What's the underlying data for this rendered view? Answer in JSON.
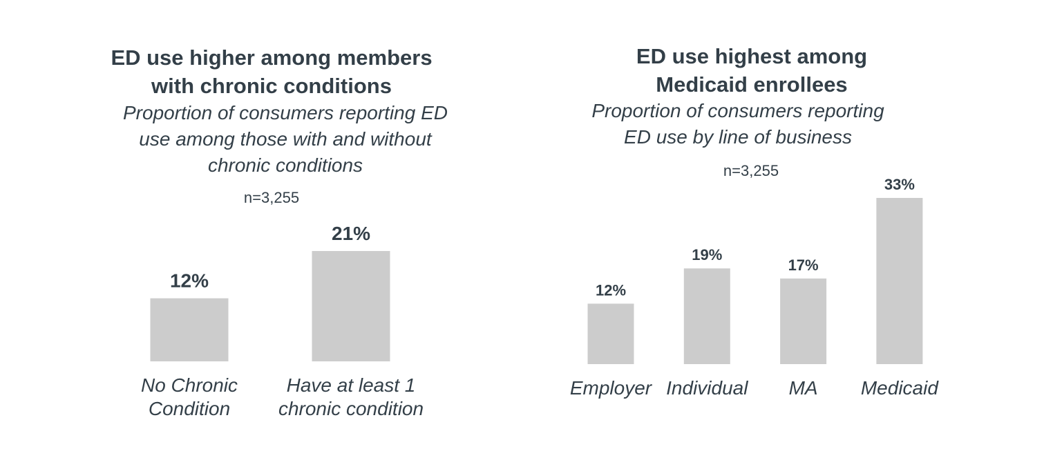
{
  "charts": [
    {
      "title": "ED use higher among members\nwith chronic conditions",
      "subtitle": "Proportion of consumers reporting ED\nuse among those with and without\nchronic conditions",
      "n": "n=3,255"
    },
    {
      "title": "ED use highest among\nMedicaid enrollees",
      "subtitle": "Proportion of consumers reporting\nED use by line of business",
      "n": "n=3,255"
    }
  ],
  "chart_data": [
    {
      "type": "bar",
      "categories": [
        "No Chronic\nCondition",
        "Have at least 1\nchronic condition"
      ],
      "values": [
        12,
        21
      ],
      "value_labels": [
        "12%",
        "21%"
      ],
      "unit": "%",
      "ylim": [
        0,
        21
      ],
      "grid": false,
      "legend": "none",
      "bar_color": "#cccccc",
      "text_color": "#333f48"
    },
    {
      "type": "bar",
      "categories": [
        "Employer",
        "Individual",
        "MA",
        "Medicaid"
      ],
      "values": [
        12,
        19,
        17,
        33
      ],
      "value_labels": [
        "12%",
        "19%",
        "17%",
        "33%"
      ],
      "unit": "%",
      "ylim": [
        0,
        33
      ],
      "grid": false,
      "legend": "none",
      "bar_color": "#cccccc",
      "text_color": "#333f48"
    }
  ]
}
